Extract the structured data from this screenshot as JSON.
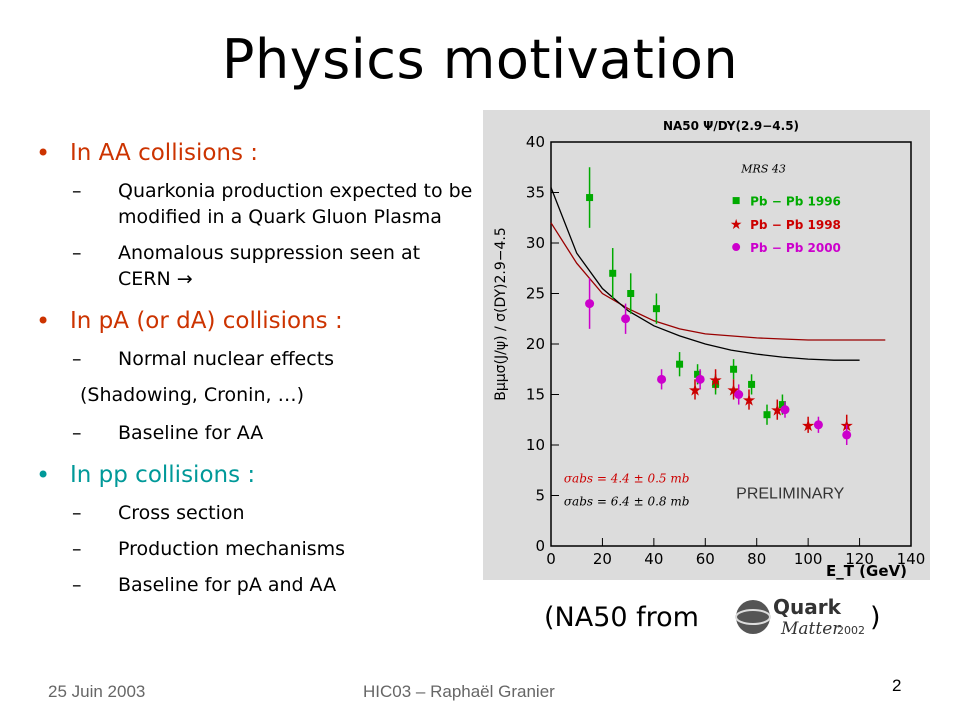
{
  "slide": {
    "title": "Physics motivation",
    "bullets": [
      {
        "label": "In AA collisions :",
        "subs": [
          "Quarkonia production expected to be modified in a Quark Gluon Plasma",
          "Anomalous suppression seen at CERN →"
        ]
      },
      {
        "label": "In pA (or dA) collisions :",
        "subs": [
          "Normal nuclear effects"
        ],
        "extra": "(Shadowing, Cronin, …)",
        "subs2": [
          "Baseline for AA"
        ]
      },
      {
        "label": "In pp collisions :",
        "subs": [
          "Cross section",
          "Production mechanisms",
          "Baseline for pA and AA"
        ]
      }
    ],
    "caption_before": "(NA50 from",
    "caption_after": ")",
    "logo_text": {
      "top": "Quark",
      "bottom": "Matter",
      "year": "2002"
    }
  },
  "footer": {
    "date": "25 Juin 2003",
    "center": "HIC03 – Raphaël Granier",
    "page": "2"
  },
  "chart_data": {
    "type": "scatter",
    "title": "NA50 Ψ/DY(2.9−4.5)",
    "annotation": "MRS 43",
    "xlabel": "E_T (GeV)",
    "ylabel": "Bμμσ(J/ψ) / σ(DY)2.9−4.5",
    "xlim": [
      0,
      140
    ],
    "ylim": [
      0,
      40
    ],
    "xticks": [
      0,
      20,
      40,
      60,
      80,
      100,
      120,
      140
    ],
    "yticks": [
      0,
      5,
      10,
      15,
      20,
      25,
      30,
      35,
      40
    ],
    "sigma_lines": [
      "σabs = 4.4 ± 0.5 mb",
      "σabs = 6.4 ± 0.8 mb"
    ],
    "watermark": "PRELIMINARY",
    "colors": {
      "Pb-Pb 1996": "#00aa00",
      "Pb-Pb 1998": "#cc0000",
      "Pb-Pb 2000": "#cc00cc",
      "red curve": "#990000",
      "black curve": "#000000"
    },
    "series": [
      {
        "name": "Pb − Pb 1996",
        "marker": "square",
        "points": [
          [
            15,
            34.5,
            3
          ],
          [
            24,
            27,
            2.5
          ],
          [
            31,
            25,
            2
          ],
          [
            41,
            23.5,
            1.5
          ],
          [
            50,
            18,
            1.2
          ],
          [
            57,
            17,
            1
          ],
          [
            64,
            16,
            1
          ],
          [
            71,
            17.5,
            1
          ],
          [
            78,
            16,
            1
          ],
          [
            84,
            13,
            1
          ],
          [
            90,
            14,
            1
          ]
        ]
      },
      {
        "name": "Pb − Pb 1998",
        "marker": "star",
        "points": [
          [
            56,
            15.5,
            1
          ],
          [
            64,
            16.5,
            1
          ],
          [
            71,
            15.5,
            1
          ],
          [
            77,
            14.5,
            1
          ],
          [
            88,
            13.5,
            1
          ],
          [
            100,
            12,
            0.8
          ],
          [
            115,
            12,
            1
          ]
        ]
      },
      {
        "name": "Pb − Pb 2000",
        "marker": "circle",
        "points": [
          [
            15,
            24,
            2.5
          ],
          [
            29,
            22.5,
            1.5
          ],
          [
            43,
            16.5,
            1
          ],
          [
            58,
            16.5,
            1
          ],
          [
            73,
            15,
            1
          ],
          [
            91,
            13.5,
            0.8
          ],
          [
            104,
            12,
            0.8
          ],
          [
            115,
            11,
            1
          ]
        ]
      }
    ],
    "curves": [
      {
        "name": "red",
        "points": [
          [
            0,
            32
          ],
          [
            10,
            28
          ],
          [
            20,
            25
          ],
          [
            30,
            23.5
          ],
          [
            40,
            22.3
          ],
          [
            50,
            21.5
          ],
          [
            60,
            21
          ],
          [
            70,
            20.8
          ],
          [
            80,
            20.6
          ],
          [
            90,
            20.5
          ],
          [
            100,
            20.4
          ],
          [
            120,
            20.4
          ],
          [
            130,
            20.4
          ]
        ]
      },
      {
        "name": "black",
        "points": [
          [
            0,
            35.5
          ],
          [
            10,
            29
          ],
          [
            20,
            25.5
          ],
          [
            30,
            23.3
          ],
          [
            40,
            21.8
          ],
          [
            50,
            20.8
          ],
          [
            60,
            20
          ],
          [
            70,
            19.4
          ],
          [
            80,
            19
          ],
          [
            90,
            18.7
          ],
          [
            100,
            18.5
          ],
          [
            110,
            18.4
          ],
          [
            120,
            18.4
          ]
        ]
      }
    ]
  }
}
